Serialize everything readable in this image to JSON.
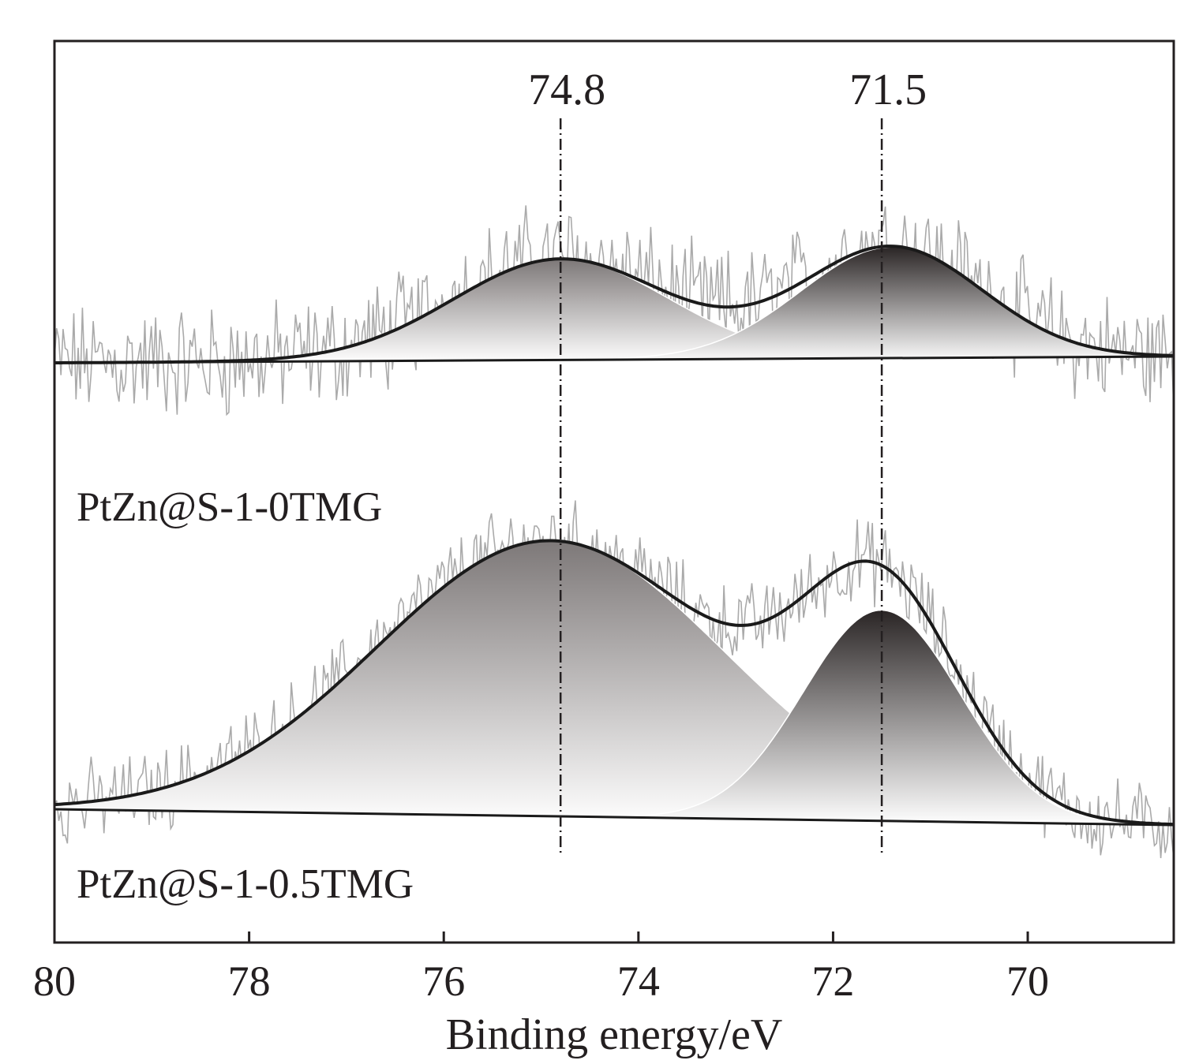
{
  "chart_data": {
    "type": "line",
    "title": "",
    "xlabel": "Binding energy/eV",
    "ylabel": "",
    "xlim": [
      80,
      68.5
    ],
    "x_reversed": true,
    "xticks": [
      80,
      78,
      76,
      74,
      72,
      70
    ],
    "xtick_labels": [
      "80",
      "78",
      "76",
      "74",
      "72",
      "70"
    ],
    "grid": false,
    "legend": "none",
    "reference_lines": [
      {
        "x": 74.8,
        "label": "74.8"
      },
      {
        "x": 71.5,
        "label": "71.5"
      }
    ],
    "panels": [
      {
        "sample": "PtZn@S-1-0TMG",
        "baseline": [
          0.0,
          0.0
        ],
        "components": [
          {
            "center": 74.8,
            "fwhm": 2.6,
            "height": 1.0
          },
          {
            "center": 71.4,
            "fwhm": 2.2,
            "height": 1.1
          }
        ],
        "envelope_peaks": [
          74.8,
          71.5
        ],
        "noise_amplitude": 0.45
      },
      {
        "sample": "PtZn@S-1-0.5TMG",
        "baseline": [
          0.0,
          0.0
        ],
        "components": [
          {
            "center": 74.9,
            "fwhm": 4.2,
            "height": 2.55
          },
          {
            "center": 71.5,
            "fwhm": 1.9,
            "height": 1.95
          }
        ],
        "envelope_peaks": [
          74.9,
          71.7
        ],
        "noise_amplitude": 0.3
      }
    ]
  },
  "colors": {
    "axis": "#231f20",
    "raw_signal": "#aaaaaa",
    "fit_envelope": "#1a1a1a",
    "component_1_top": "#7d7878",
    "component_2_top": "#2a2525",
    "component_bottom": "#ffffff"
  }
}
